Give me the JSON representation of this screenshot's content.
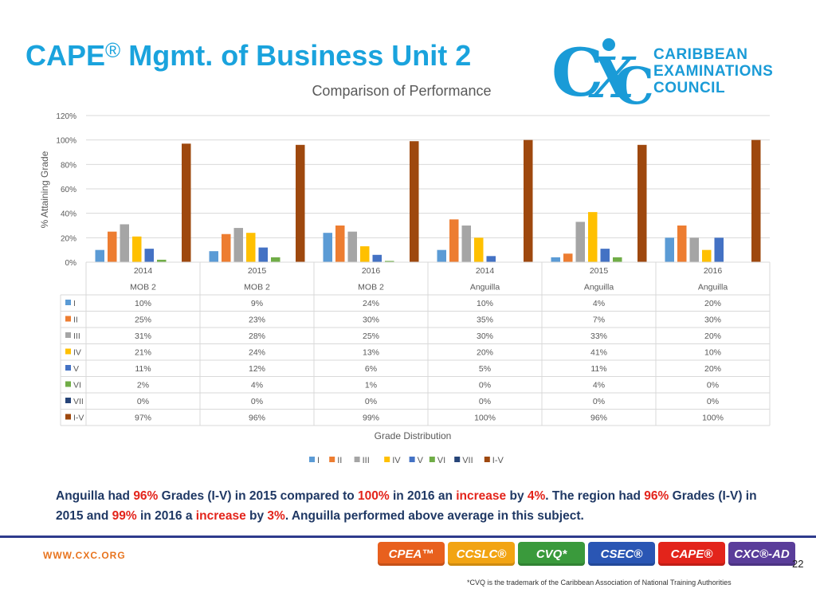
{
  "slide": {
    "title": "CAPE",
    "title_mark": "®",
    "title_rest": "Mgmt. of Business Unit 2",
    "logo_lines": [
      "CARIBBEAN",
      "EXAMINATIONS",
      "COUNCIL"
    ],
    "website": "WWW.CXC.ORG",
    "page_number": "22",
    "footnote": "*CVQ is the trademark of the Caribbean Association of National Training Authorities"
  },
  "summary": {
    "p1": "Anguilla had ",
    "v1": "96%",
    "p2": " Grades (I-V) in 2015 compared to ",
    "v2": "100%",
    "p3": " in 2016 an ",
    "v3": "increase",
    "p4": " by ",
    "v4": "4%",
    "p5": ". The region had ",
    "v5": "96%",
    "p6": " Grades (I-V) in 2015 and ",
    "v6": "99%",
    "p7": " in 2016 a ",
    "v7": "increase",
    "p8": " by ",
    "v8": "3%",
    "p9": ". Anguilla performed above average in this subject."
  },
  "badges": [
    {
      "label": "CPEA™",
      "color": "#e8601e"
    },
    {
      "label": "CCSLC®",
      "color": "#f2a413"
    },
    {
      "label": "CVQ*",
      "color": "#3a9a3c"
    },
    {
      "label": "CSEC®",
      "color": "#2a56b4"
    },
    {
      "label": "CAPE®",
      "color": "#e3241b"
    },
    {
      "label": "CXC®-AD",
      "color": "#5a3d9a"
    }
  ],
  "chart_data": {
    "type": "bar",
    "title": "Comparison of Performance",
    "xlabel": "Grade Distribution",
    "ylabel": "% Attaining Grade",
    "ylim": [
      0,
      120
    ],
    "yticks": [
      "0%",
      "20%",
      "40%",
      "60%",
      "80%",
      "100%",
      "120%"
    ],
    "grid": true,
    "legend": "bottom",
    "categories": [
      {
        "year": "2014",
        "group": "MOB 2"
      },
      {
        "year": "2015",
        "group": "MOB 2"
      },
      {
        "year": "2016",
        "group": "MOB 2"
      },
      {
        "year": "2014",
        "group": "Anguilla"
      },
      {
        "year": "2015",
        "group": "Anguilla"
      },
      {
        "year": "2016",
        "group": "Anguilla"
      }
    ],
    "series": [
      {
        "name": "I",
        "color": "#5b9bd5",
        "values": [
          10,
          9,
          24,
          10,
          4,
          20
        ]
      },
      {
        "name": "II",
        "color": "#ed7d31",
        "values": [
          25,
          23,
          30,
          35,
          7,
          30
        ]
      },
      {
        "name": "III",
        "color": "#a5a5a5",
        "values": [
          31,
          28,
          25,
          30,
          33,
          20
        ]
      },
      {
        "name": "IV",
        "color": "#ffc000",
        "values": [
          21,
          24,
          13,
          20,
          41,
          10
        ]
      },
      {
        "name": "V",
        "color": "#4472c4",
        "values": [
          11,
          12,
          6,
          5,
          11,
          20
        ]
      },
      {
        "name": "VI",
        "color": "#70ad47",
        "values": [
          2,
          4,
          1,
          0,
          4,
          0
        ]
      },
      {
        "name": "VII",
        "color": "#264478",
        "values": [
          0,
          0,
          0,
          0,
          0,
          0
        ]
      },
      {
        "name": "I-V",
        "color": "#9e480e",
        "values": [
          97,
          96,
          99,
          100,
          96,
          100
        ]
      }
    ],
    "table_values": [
      [
        "10%",
        "9%",
        "24%",
        "10%",
        "4%",
        "20%"
      ],
      [
        "25%",
        "23%",
        "30%",
        "35%",
        "7%",
        "30%"
      ],
      [
        "31%",
        "28%",
        "25%",
        "30%",
        "33%",
        "20%"
      ],
      [
        "21%",
        "24%",
        "13%",
        "20%",
        "41%",
        "10%"
      ],
      [
        "11%",
        "12%",
        "6%",
        "5%",
        "11%",
        "20%"
      ],
      [
        "2%",
        "4%",
        "1%",
        "0%",
        "4%",
        "0%"
      ],
      [
        "0%",
        "0%",
        "0%",
        "0%",
        "0%",
        "0%"
      ],
      [
        "97%",
        "96%",
        "99%",
        "100%",
        "96%",
        "100%"
      ]
    ]
  }
}
